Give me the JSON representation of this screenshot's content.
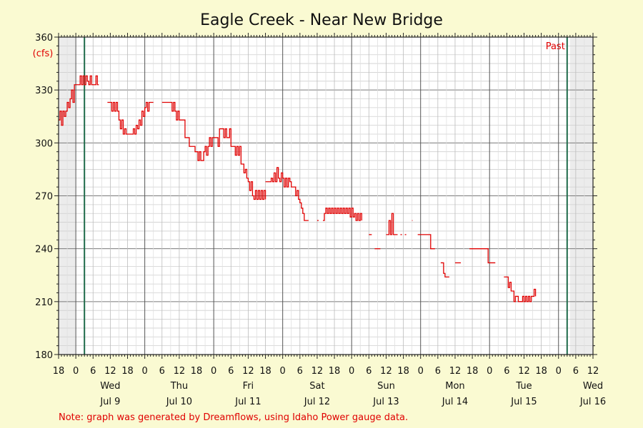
{
  "chart_data": {
    "type": "line",
    "title": "Eagle Creek - Near New Bridge",
    "ylabel": "(cfs)",
    "ylim": [
      180,
      360
    ],
    "yticks": [
      180,
      210,
      240,
      270,
      300,
      330,
      360
    ],
    "x_start": "Jul 8 18:00",
    "x_end": "Jul 16 12:00",
    "x_hours_range": [
      0,
      186
    ],
    "x_ticks": [
      {
        "h": 0,
        "label": "18"
      },
      {
        "h": 6,
        "label": "0"
      },
      {
        "h": 12,
        "label": "6"
      },
      {
        "h": 18,
        "label": "12"
      },
      {
        "h": 24,
        "label": "18"
      },
      {
        "h": 30,
        "label": "0"
      },
      {
        "h": 36,
        "label": "6"
      },
      {
        "h": 42,
        "label": "12"
      },
      {
        "h": 48,
        "label": "18"
      },
      {
        "h": 54,
        "label": "0"
      },
      {
        "h": 60,
        "label": "6"
      },
      {
        "h": 66,
        "label": "12"
      },
      {
        "h": 72,
        "label": "18"
      },
      {
        "h": 78,
        "label": "0"
      },
      {
        "h": 84,
        "label": "6"
      },
      {
        "h": 90,
        "label": "12"
      },
      {
        "h": 96,
        "label": "18"
      },
      {
        "h": 102,
        "label": "0"
      },
      {
        "h": 108,
        "label": "6"
      },
      {
        "h": 114,
        "label": "12"
      },
      {
        "h": 120,
        "label": "18"
      },
      {
        "h": 126,
        "label": "0"
      },
      {
        "h": 132,
        "label": "6"
      },
      {
        "h": 138,
        "label": "12"
      },
      {
        "h": 144,
        "label": "18"
      },
      {
        "h": 150,
        "label": "0"
      },
      {
        "h": 156,
        "label": "6"
      },
      {
        "h": 162,
        "label": "12"
      },
      {
        "h": 168,
        "label": "18"
      },
      {
        "h": 174,
        "label": "0"
      },
      {
        "h": 180,
        "label": "6"
      },
      {
        "h": 186,
        "label": "12"
      }
    ],
    "day_labels": [
      {
        "h": 18,
        "day": "Wed",
        "date": "Jul 9"
      },
      {
        "h": 42,
        "day": "Thu",
        "date": "Jul 10"
      },
      {
        "h": 66,
        "day": "Fri",
        "date": "Jul 11"
      },
      {
        "h": 90,
        "day": "Sat",
        "date": "Jul 12"
      },
      {
        "h": 114,
        "day": "Sun",
        "date": "Jul 13"
      },
      {
        "h": 138,
        "day": "Mon",
        "date": "Jul 14"
      },
      {
        "h": 162,
        "day": "Tue",
        "date": "Jul 15"
      },
      {
        "h": 186,
        "day": "Wed",
        "date": "Jul 16"
      }
    ],
    "markers": [
      {
        "h": 9,
        "label": ""
      },
      {
        "h": 177,
        "label": "Past"
      }
    ],
    "shaded_ranges": [
      [
        0,
        6
      ],
      [
        178,
        186
      ]
    ],
    "series": [
      {
        "color": "#e00000",
        "segments": [
          [
            [
              0,
              313
            ],
            [
              0.5,
              318
            ],
            [
              1,
              310
            ],
            [
              1.5,
              318
            ],
            [
              2,
              315
            ],
            [
              2.5,
              318
            ],
            [
              3,
              323
            ],
            [
              3.5,
              320
            ],
            [
              4,
              325
            ],
            [
              4.5,
              330
            ],
            [
              5,
              323
            ],
            [
              5.5,
              333
            ],
            [
              6,
              333
            ],
            [
              7,
              333
            ],
            [
              7.5,
              338
            ],
            [
              8,
              333
            ],
            [
              8.5,
              338
            ],
            [
              9,
              333
            ],
            [
              9.5,
              338
            ],
            [
              10,
              335
            ],
            [
              10.5,
              333
            ],
            [
              11,
              338
            ],
            [
              11.5,
              333
            ],
            [
              12,
              333
            ],
            [
              13,
              338
            ],
            [
              13.5,
              333
            ],
            [
              14,
              333
            ]
          ],
          [
            [
              17,
              323
            ],
            [
              18,
              323
            ],
            [
              18.5,
              318
            ],
            [
              19,
              323
            ],
            [
              19.5,
              318
            ],
            [
              20,
              323
            ],
            [
              20.5,
              318
            ],
            [
              21,
              313
            ],
            [
              21.5,
              308
            ],
            [
              22,
              313
            ],
            [
              22.5,
              305
            ],
            [
              23,
              308
            ],
            [
              23.5,
              305
            ],
            [
              24,
              305
            ],
            [
              25,
              305
            ],
            [
              26,
              308
            ],
            [
              26.5,
              305
            ],
            [
              27,
              310
            ],
            [
              27.5,
              308
            ],
            [
              28,
              313
            ],
            [
              28.5,
              310
            ],
            [
              29,
              318
            ],
            [
              29.5,
              315
            ],
            [
              30,
              320
            ],
            [
              30.5,
              323
            ],
            [
              31,
              318
            ],
            [
              31.5,
              323
            ],
            [
              33,
              323
            ]
          ],
          [
            [
              36,
              323
            ],
            [
              39,
              323
            ],
            [
              39.5,
              318
            ],
            [
              40,
              323
            ],
            [
              40.5,
              318
            ],
            [
              41,
              313
            ],
            [
              41.5,
              318
            ],
            [
              42,
              313
            ],
            [
              43,
              313
            ],
            [
              44,
              303
            ],
            [
              45,
              303
            ],
            [
              45.5,
              298
            ],
            [
              47,
              298
            ],
            [
              47.5,
              295
            ],
            [
              48,
              295
            ],
            [
              48.5,
              290
            ],
            [
              49,
              295
            ],
            [
              49.5,
              290
            ],
            [
              50,
              290
            ],
            [
              50.5,
              295
            ],
            [
              51,
              298
            ],
            [
              51.5,
              293
            ],
            [
              52,
              298
            ],
            [
              52.5,
              303
            ],
            [
              53,
              298
            ],
            [
              53.5,
              303
            ],
            [
              54,
              303
            ],
            [
              55,
              303
            ],
            [
              55.5,
              298
            ],
            [
              56,
              308
            ],
            [
              57,
              308
            ],
            [
              57.5,
              303
            ],
            [
              58,
              308
            ],
            [
              58.5,
              303
            ],
            [
              59,
              303
            ],
            [
              59.5,
              308
            ],
            [
              60,
              298
            ],
            [
              61,
              298
            ],
            [
              61.5,
              293
            ],
            [
              62,
              298
            ],
            [
              62.5,
              293
            ],
            [
              63,
              298
            ],
            [
              63.5,
              288
            ],
            [
              64,
              288
            ],
            [
              64.5,
              283
            ],
            [
              65,
              285
            ],
            [
              65.5,
              280
            ],
            [
              66,
              278
            ],
            [
              66.5,
              273
            ],
            [
              67,
              278
            ],
            [
              67.5,
              270
            ],
            [
              68,
              268
            ],
            [
              68.5,
              273
            ],
            [
              69,
              268
            ],
            [
              69.5,
              273
            ],
            [
              70,
              268
            ],
            [
              70.5,
              273
            ],
            [
              71,
              268
            ],
            [
              71.5,
              273
            ],
            [
              72,
              268
            ]
          ],
          [
            [
              72,
              278
            ],
            [
              73,
              278
            ],
            [
              73.5,
              278
            ],
            [
              74,
              280
            ],
            [
              74.5,
              278
            ],
            [
              75,
              283
            ],
            [
              75.5,
              278
            ],
            [
              76,
              286
            ],
            [
              76.5,
              280
            ],
            [
              77,
              278
            ],
            [
              77.5,
              283
            ],
            [
              78,
              280
            ],
            [
              78.5,
              275
            ],
            [
              79,
              280
            ],
            [
              79.5,
              275
            ],
            [
              80,
              280
            ],
            [
              80.5,
              278
            ],
            [
              81,
              275
            ],
            [
              82,
              275
            ],
            [
              82.5,
              270
            ],
            [
              83,
              273
            ],
            [
              83.5,
              268
            ],
            [
              84,
              266
            ],
            [
              84.5,
              263
            ],
            [
              85,
              260
            ],
            [
              85.5,
              256
            ],
            [
              87,
              256
            ]
          ],
          [
            [
              90,
              256
            ],
            [
              90.5,
              256
            ]
          ],
          [
            [
              92,
              256
            ],
            [
              92.5,
              260
            ],
            [
              93,
              263
            ],
            [
              93.5,
              260
            ],
            [
              94,
              263
            ],
            [
              94.5,
              260
            ],
            [
              95,
              263
            ],
            [
              95.5,
              260
            ],
            [
              96,
              263
            ],
            [
              96.5,
              260
            ],
            [
              97,
              263
            ],
            [
              97.5,
              260
            ],
            [
              98,
              263
            ],
            [
              98.5,
              260
            ],
            [
              99,
              263
            ],
            [
              99.5,
              260
            ],
            [
              100,
              263
            ],
            [
              100.5,
              260
            ],
            [
              101,
              263
            ],
            [
              101.5,
              258
            ],
            [
              102,
              263
            ],
            [
              102.5,
              258
            ],
            [
              103,
              260
            ],
            [
              103.5,
              256
            ],
            [
              104,
              260
            ],
            [
              104.5,
              256
            ],
            [
              105,
              260
            ],
            [
              105.5,
              256
            ]
          ],
          [
            [
              108,
              248
            ],
            [
              109,
              248
            ]
          ],
          [
            [
              110,
              240
            ],
            [
              112,
              240
            ]
          ],
          [
            [
              114,
              248
            ],
            [
              115,
              256
            ],
            [
              115.5,
              248
            ],
            [
              116,
              260
            ],
            [
              116.5,
              248
            ],
            [
              118,
              248
            ]
          ],
          [
            [
              119,
              248
            ],
            [
              119.5,
              248
            ]
          ],
          [
            [
              120.5,
              248
            ],
            [
              121,
              248
            ]
          ],
          [
            [
              123,
              256
            ],
            [
              123.2,
              256
            ]
          ],
          [
            [
              125,
              248
            ],
            [
              128,
              248
            ],
            [
              129,
              248
            ],
            [
              129.5,
              240
            ],
            [
              131,
              240
            ]
          ],
          [
            [
              133,
              232
            ],
            [
              133.5,
              232
            ],
            [
              134,
              226
            ],
            [
              134.5,
              224
            ],
            [
              136,
              224
            ]
          ],
          [
            [
              138,
              232
            ],
            [
              140,
              232
            ]
          ],
          [
            [
              143,
              240
            ],
            [
              145,
              240
            ],
            [
              146,
              240
            ],
            [
              148,
              240
            ],
            [
              149,
              240
            ],
            [
              149.5,
              232
            ],
            [
              152,
              232
            ]
          ],
          [
            [
              155,
              224
            ],
            [
              156,
              224
            ],
            [
              156.5,
              218
            ],
            [
              157,
              221
            ],
            [
              157.5,
              216
            ],
            [
              158,
              216
            ],
            [
              158.5,
              210
            ],
            [
              159,
              213
            ],
            [
              160,
              210
            ],
            [
              161,
              210
            ],
            [
              161.5,
              213
            ],
            [
              162,
              210
            ],
            [
              162.5,
              213
            ],
            [
              163,
              210
            ],
            [
              163.5,
              213
            ],
            [
              164,
              210
            ],
            [
              164.5,
              213
            ],
            [
              165,
              213
            ],
            [
              165.5,
              217
            ],
            [
              166,
              213
            ]
          ]
        ]
      }
    ],
    "note": "Note: graph was generated by Dreamflows, using Idaho Power gauge data."
  }
}
